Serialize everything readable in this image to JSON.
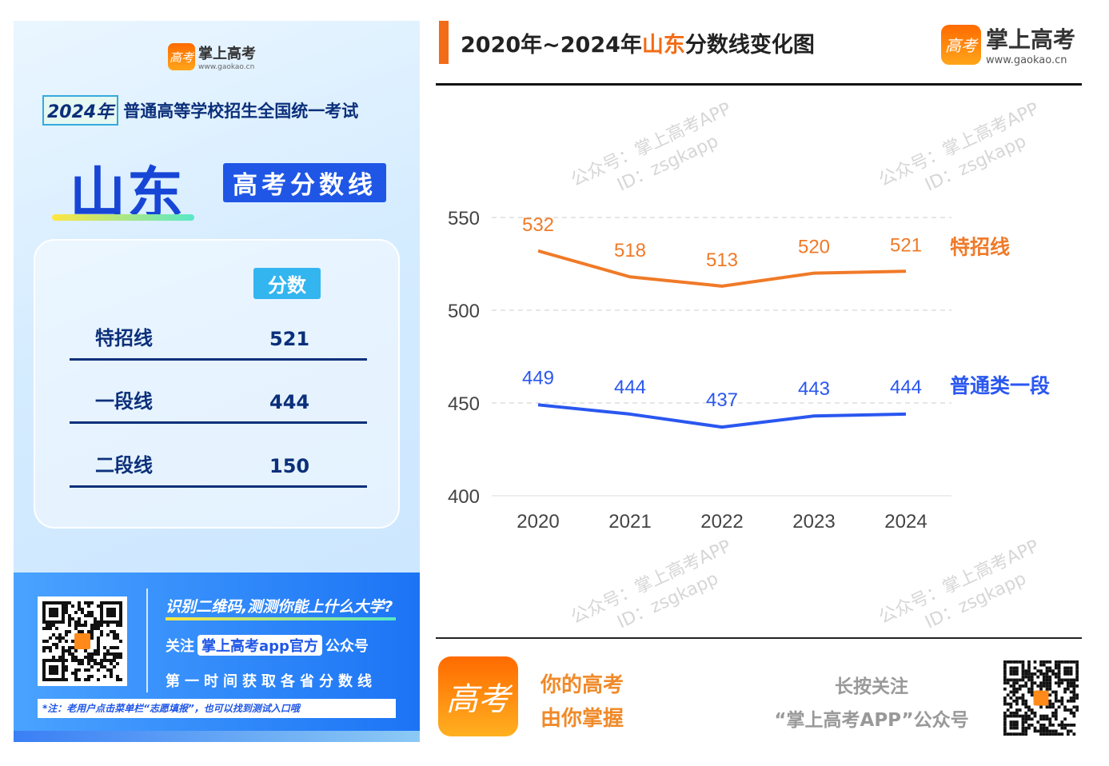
{
  "poster": {
    "brand": "掌上高考",
    "brand_url": "www.gaokao.cn",
    "logo_glyph": "高考",
    "exam_year": "2024年",
    "exam_name": "普通高等学校招生全国统一考试",
    "province": "山东",
    "subtitle": "高考分数线",
    "table_header": "分数",
    "rows": [
      {
        "label": "特招线",
        "value": "521"
      },
      {
        "label": "一段线",
        "value": "444"
      },
      {
        "label": "二段线",
        "value": "150"
      }
    ],
    "banner": {
      "line1": "识别二维码,测测你能上什么大学?",
      "line2_pre": "关注",
      "line2_hl": "掌上高考app官方",
      "line2_post": "公众号",
      "line3": "第一时间获取各省分数线",
      "note": "*注：老用户点击菜单栏“志愿填报”，也可以找到测试入口哦"
    }
  },
  "header": {
    "title_pre": "2020年~2024年",
    "title_province": "山东",
    "title_post": "分数线变化图",
    "brand": "掌上高考",
    "brand_url": "www.gaokao.cn"
  },
  "watermark": {
    "line1": "公众号：掌上高考APP",
    "line2": "ID：zsgkapp"
  },
  "footer": {
    "slogan1": "你的高考",
    "slogan2": "由你掌握",
    "follow1": "长按关注",
    "follow2": "“掌上高考APP”公众号"
  },
  "colors": {
    "orange": "#f07a28",
    "blue": "#2a57f0",
    "accent": "#f26c17"
  },
  "chart_data": {
    "type": "line",
    "categories": [
      "2020",
      "2021",
      "2022",
      "2023",
      "2024"
    ],
    "ylim": [
      400,
      550
    ],
    "yticks": [
      400,
      450,
      500,
      550
    ],
    "grid": true,
    "series": [
      {
        "name": "特招线",
        "color": "#f07a28",
        "values": [
          532,
          518,
          513,
          520,
          521
        ]
      },
      {
        "name": "普通类一段",
        "color": "#2a57f0",
        "values": [
          449,
          444,
          437,
          443,
          444
        ]
      }
    ]
  }
}
